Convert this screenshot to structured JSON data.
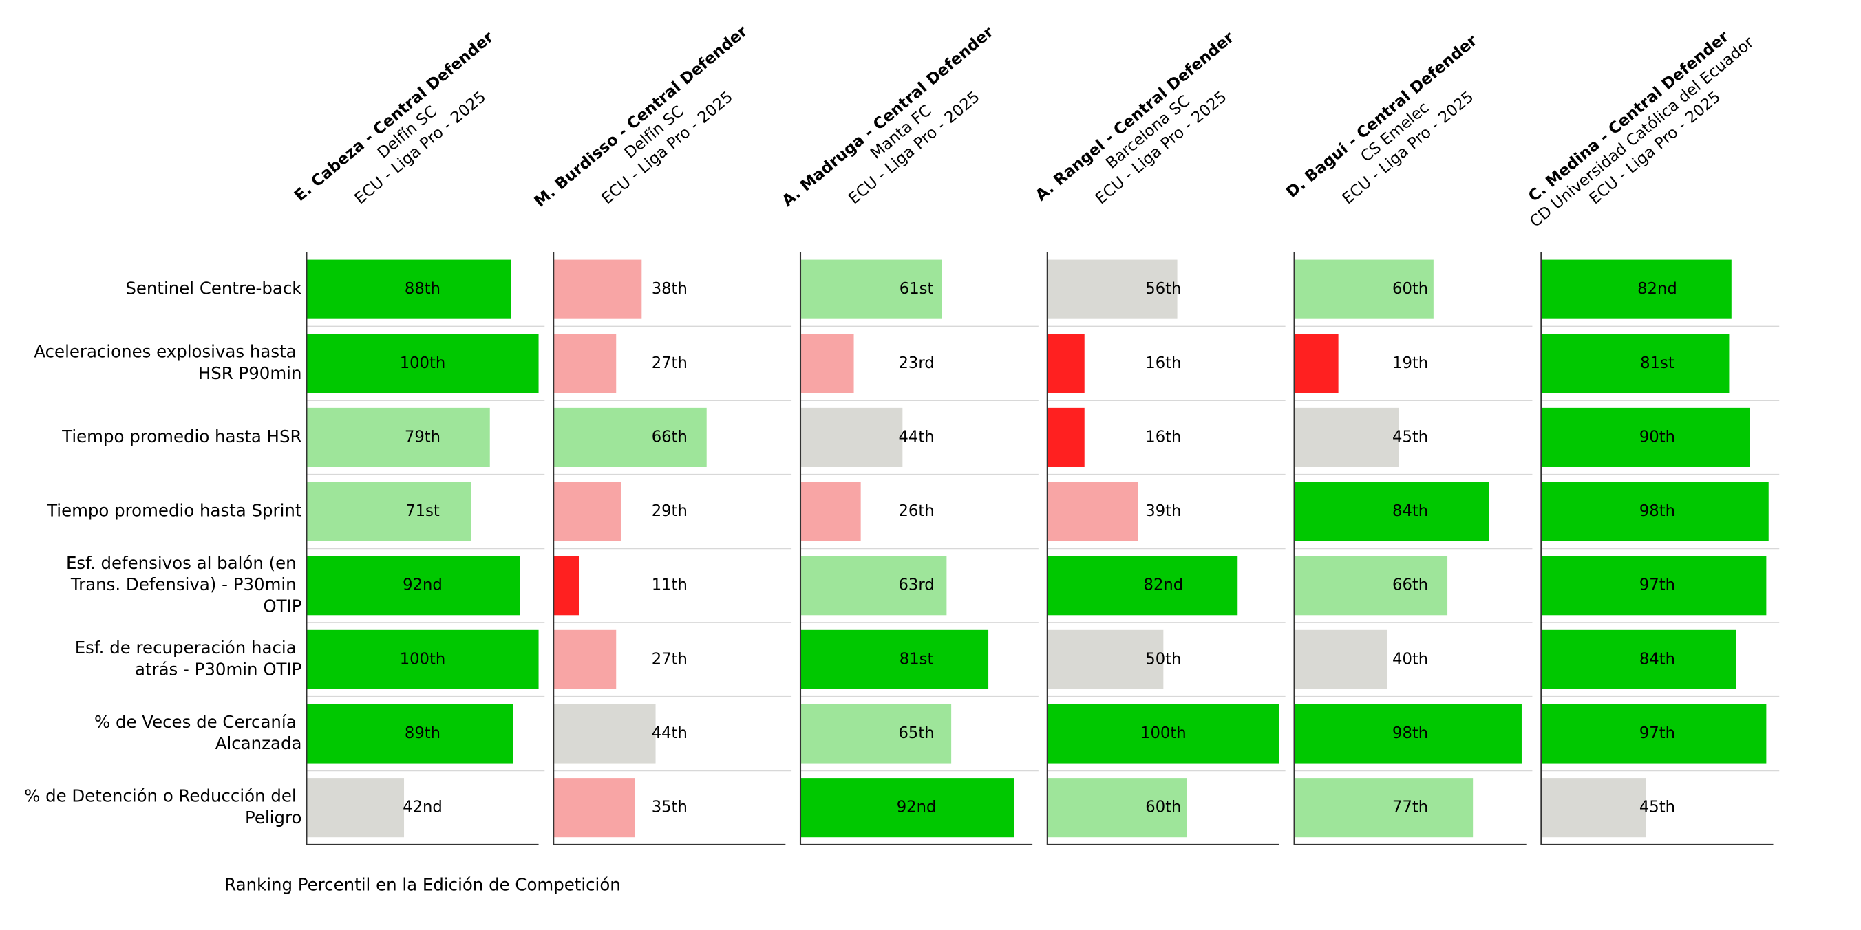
{
  "chart_data": [
    {
      "type": "bar",
      "orientation": "horizontal",
      "title": "E. Cabeza - Central Defender",
      "club": "Delfín SC",
      "league": "ECU - Liga Pro - 2025",
      "categories": [
        "Sentinel Centre-back",
        "Aceleraciones explosivas hasta HSR P90min",
        "Tiempo promedio hasta HSR",
        "Tiempo promedio hasta Sprint",
        "Esf. defensivos al balón (en Trans. Defensiva) - P30min OTIP",
        "Esf. de recuperación hacia atrás - P30min OTIP",
        "% de Veces de Cercanía Alcanzada",
        "% de Detención o Reducción del Peligro"
      ],
      "values": [
        88,
        100,
        79,
        71,
        92,
        100,
        89,
        42
      ],
      "value_labels": [
        "88th",
        "100th",
        "79th",
        "71st",
        "92nd",
        "100th",
        "89th",
        "42nd"
      ],
      "colors": [
        "#00c800",
        "#00c800",
        "#9ee59a",
        "#9ee59a",
        "#00c800",
        "#00c800",
        "#00c800",
        "#d9d9d4"
      ],
      "xlim": [
        0,
        100
      ],
      "xlabel": "Ranking Percentil en la Edición de Competición"
    },
    {
      "type": "bar",
      "orientation": "horizontal",
      "title": "M. Burdisso - Central Defender",
      "club": "Delfín SC",
      "league": "ECU - Liga Pro - 2025",
      "values": [
        38,
        27,
        66,
        29,
        11,
        27,
        44,
        35
      ],
      "value_labels": [
        "38th",
        "27th",
        "66th",
        "29th",
        "11th",
        "27th",
        "44th",
        "35th"
      ],
      "colors": [
        "#f8a5a5",
        "#f8a5a5",
        "#9ee59a",
        "#f8a5a5",
        "#ff2020",
        "#f8a5a5",
        "#d9d9d4",
        "#f8a5a5"
      ],
      "xlim": [
        0,
        100
      ]
    },
    {
      "type": "bar",
      "orientation": "horizontal",
      "title": "A. Madruga - Central Defender",
      "club": "Manta FC",
      "league": "ECU - Liga Pro - 2025",
      "values": [
        61,
        23,
        44,
        26,
        63,
        81,
        65,
        92
      ],
      "value_labels": [
        "61st",
        "23rd",
        "44th",
        "26th",
        "63rd",
        "81st",
        "65th",
        "92nd"
      ],
      "colors": [
        "#9ee59a",
        "#f8a5a5",
        "#d9d9d4",
        "#f8a5a5",
        "#9ee59a",
        "#00c800",
        "#9ee59a",
        "#00c800"
      ],
      "xlim": [
        0,
        100
      ]
    },
    {
      "type": "bar",
      "orientation": "horizontal",
      "title": "A. Rangel - Central Defender",
      "club": "Barcelona SC",
      "league": "ECU - Liga Pro - 2025",
      "values": [
        56,
        16,
        16,
        39,
        82,
        50,
        100,
        60
      ],
      "value_labels": [
        "56th",
        "16th",
        "16th",
        "39th",
        "82nd",
        "50th",
        "100th",
        "60th"
      ],
      "colors": [
        "#d9d9d4",
        "#ff2020",
        "#ff2020",
        "#f8a5a5",
        "#00c800",
        "#d9d9d4",
        "#00c800",
        "#9ee59a"
      ],
      "xlim": [
        0,
        100
      ]
    },
    {
      "type": "bar",
      "orientation": "horizontal",
      "title": "D. Bagui - Central Defender",
      "club": "CS Emelec",
      "league": "ECU - Liga Pro - 2025",
      "values": [
        60,
        19,
        45,
        84,
        66,
        40,
        98,
        77
      ],
      "value_labels": [
        "60th",
        "19th",
        "45th",
        "84th",
        "66th",
        "40th",
        "98th",
        "77th"
      ],
      "colors": [
        "#9ee59a",
        "#ff2020",
        "#d9d9d4",
        "#00c800",
        "#9ee59a",
        "#d9d9d4",
        "#00c800",
        "#9ee59a"
      ],
      "xlim": [
        0,
        100
      ]
    },
    {
      "type": "bar",
      "orientation": "horizontal",
      "title": "C. Medina - Central Defender",
      "club": "CD Universidad Católica del Ecuador",
      "league": "ECU - Liga Pro - 2025",
      "values": [
        82,
        81,
        90,
        98,
        97,
        84,
        97,
        45
      ],
      "value_labels": [
        "82nd",
        "81st",
        "90th",
        "98th",
        "97th",
        "84th",
        "97th",
        "45th"
      ],
      "colors": [
        "#00c800",
        "#00c800",
        "#00c800",
        "#00c800",
        "#00c800",
        "#00c800",
        "#00c800",
        "#d9d9d4"
      ],
      "xlim": [
        0,
        100
      ]
    }
  ]
}
